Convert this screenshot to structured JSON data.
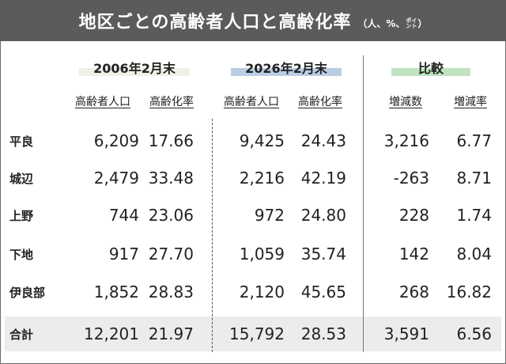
{
  "title": {
    "main": "地区ごとの高齢者人口と高齢化率",
    "unit_open": "（人、%、",
    "unit_point": "ポイント",
    "unit_close": "）"
  },
  "colors": {
    "title_bg": "#5b5b5b",
    "highlight_2026": "#b9cde4",
    "highlight_diff": "#bfe3c0",
    "highlight_2006": "#f0efe8",
    "total_row_bg": "#ececec"
  },
  "groups": {
    "g2006": "2006年2月末",
    "g2026": "2026年2月末",
    "gdiff": "比較"
  },
  "columns": {
    "c2006_pop": "高齢者人口",
    "c2006_rate": "高齢化率",
    "c2026_pop": "高齢者人口",
    "c2026_rate": "高齢化率",
    "diff_pop": "増減数",
    "diff_rate": "増減率"
  },
  "rows": [
    {
      "district": "平良",
      "pop2006": "6,209",
      "rate2006": "17.66",
      "pop2026": "9,425",
      "rate2026": "24.43",
      "diff_pop": "3,216",
      "diff_rate": "6.77"
    },
    {
      "district": "城辺",
      "pop2006": "2,479",
      "rate2006": "33.48",
      "pop2026": "2,216",
      "rate2026": "42.19",
      "diff_pop": "-263",
      "diff_rate": "8.71"
    },
    {
      "district": "上野",
      "pop2006": "744",
      "rate2006": "23.06",
      "pop2026": "972",
      "rate2026": "24.80",
      "diff_pop": "228",
      "diff_rate": "1.74"
    },
    {
      "district": "下地",
      "pop2006": "917",
      "rate2006": "27.70",
      "pop2026": "1,059",
      "rate2026": "35.74",
      "diff_pop": "142",
      "diff_rate": "8.04"
    },
    {
      "district": "伊良部",
      "pop2006": "1,852",
      "rate2006": "28.83",
      "pop2026": "2,120",
      "rate2026": "45.65",
      "diff_pop": "268",
      "diff_rate": "16.82"
    }
  ],
  "total": {
    "district": "合計",
    "pop2006": "12,201",
    "rate2006": "21.97",
    "pop2026": "15,792",
    "rate2026": "28.53",
    "diff_pop": "3,591",
    "diff_rate": "6.56"
  }
}
